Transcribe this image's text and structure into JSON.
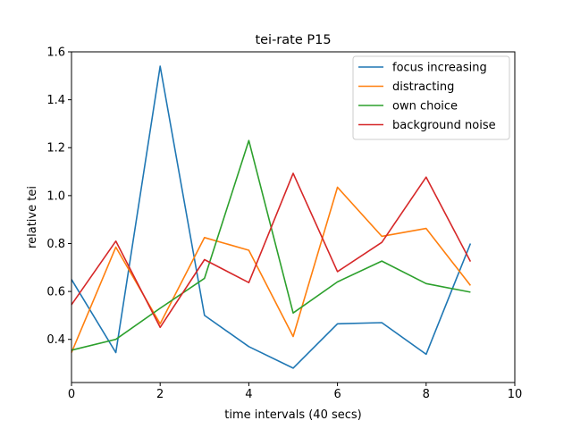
{
  "chart_data": {
    "type": "line",
    "title": "tei-rate P15",
    "xlabel": "time intervals (40 secs)",
    "ylabel": "relative tei",
    "xlim": [
      0,
      10
    ],
    "ylim": [
      0.22,
      1.6
    ],
    "xticks": [
      "0",
      "2",
      "4",
      "6",
      "8",
      "10"
    ],
    "yticks": [
      "0.4",
      "0.6",
      "0.8",
      "1.0",
      "1.2",
      "1.4",
      "1.6"
    ],
    "grid": false,
    "legend_position": "top-right",
    "x": [
      0,
      1,
      2,
      3,
      4,
      5,
      6,
      7,
      8,
      9
    ],
    "series": [
      {
        "name": "focus increasing",
        "color": "#1f77b4",
        "values": [
          0.65,
          0.345,
          1.54,
          0.5,
          0.37,
          0.28,
          0.465,
          0.47,
          0.338,
          0.8
        ]
      },
      {
        "name": "distracting",
        "color": "#ff7f0e",
        "values": [
          0.345,
          0.785,
          0.465,
          0.825,
          0.772,
          0.412,
          1.035,
          0.83,
          0.863,
          0.625
        ]
      },
      {
        "name": "own choice",
        "color": "#2ca02c",
        "values": [
          0.355,
          0.4,
          0.53,
          0.655,
          1.23,
          0.51,
          0.64,
          0.727,
          0.633,
          0.597
        ]
      },
      {
        "name": "background noise",
        "color": "#d62728",
        "values": [
          0.545,
          0.81,
          0.45,
          0.733,
          0.637,
          1.093,
          0.683,
          0.805,
          1.077,
          0.725
        ]
      }
    ]
  }
}
